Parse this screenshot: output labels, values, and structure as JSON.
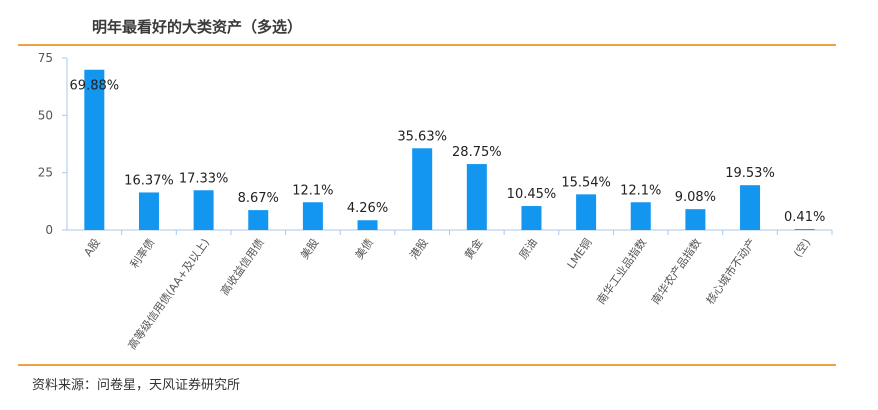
{
  "header": {
    "title": "明年最看好的大类资产（多选）"
  },
  "footer": {
    "source": "资料来源：问卷星，天风证券研究所"
  },
  "colors": {
    "bar": "#1396f0",
    "accent_rule": "#f0a040",
    "axis": "#a8c8e8"
  },
  "chart_data": {
    "type": "bar",
    "title": "明年最看好的大类资产（多选）",
    "categories": [
      "A股",
      "利率债",
      "高等级信用债(AA+及以上)",
      "高收益信用债",
      "美股",
      "美债",
      "港股",
      "黄金",
      "原油",
      "LME铜",
      "南华工业品指数",
      "南华农产品指数",
      "核心城市不动产",
      "(空)"
    ],
    "values": [
      69.88,
      16.37,
      17.33,
      8.67,
      12.1,
      4.26,
      35.63,
      28.75,
      10.45,
      15.54,
      12.1,
      9.08,
      19.53,
      0.41
    ],
    "data_labels": [
      "69.88%",
      "16.37%",
      "17.33%",
      "8.67%",
      "12.1%",
      "4.26%",
      "35.63%",
      "28.75%",
      "10.45%",
      "15.54%",
      "12.1%",
      "9.08%",
      "19.53%",
      "0.41%"
    ],
    "yticks": [
      0,
      25,
      50,
      75
    ],
    "ylim": [
      0,
      75
    ],
    "grid": false,
    "legend": "none"
  }
}
